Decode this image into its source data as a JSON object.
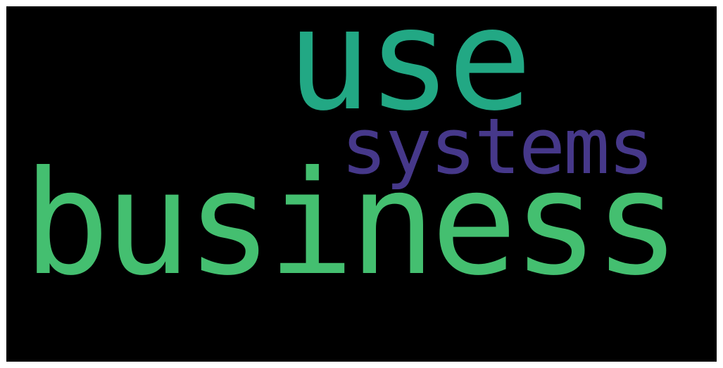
{
  "background_color": "#000000",
  "words": [
    {
      "key": "use",
      "text": "use",
      "color": "#22a884"
    },
    {
      "key": "systems",
      "text": "systems",
      "color": "#46388a"
    },
    {
      "key": "business",
      "text": "business",
      "color": "#44bf70"
    }
  ]
}
